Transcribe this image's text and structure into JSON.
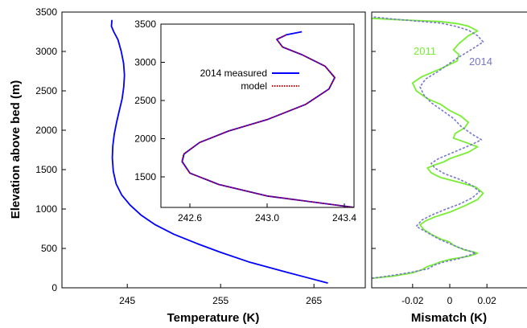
{
  "chart_data": [
    {
      "type": "line",
      "id": "main",
      "xlabel": "Temperature (K)",
      "ylabel": "Elevation above bed (m)",
      "xlim": [
        238,
        270.5
      ],
      "ylim": [
        0,
        3500
      ],
      "xticks": [
        245,
        255,
        265
      ],
      "yticks": [
        0,
        500,
        1000,
        1500,
        2000,
        2500,
        3000,
        3500
      ],
      "grid": false,
      "series": [
        {
          "color": "#0000ff",
          "x": [
            266.5,
            262.0,
            258.0,
            255.0,
            252.5,
            250.0,
            248.0,
            246.5,
            245.3,
            244.4,
            243.8,
            243.5,
            243.4,
            243.45,
            243.6,
            243.85,
            244.15,
            244.45,
            244.62,
            244.7,
            244.6,
            244.35,
            244.0,
            243.55,
            243.3,
            243.35
          ],
          "y": [
            60,
            200,
            330,
            450,
            560,
            680,
            800,
            920,
            1050,
            1180,
            1320,
            1480,
            1650,
            1800,
            1950,
            2100,
            2250,
            2400,
            2550,
            2700,
            2850,
            3000,
            3150,
            3250,
            3320,
            3400
          ]
        }
      ]
    },
    {
      "type": "line",
      "id": "inset",
      "xlim": [
        242.45,
        243.45
      ],
      "ylim": [
        1100,
        3500
      ],
      "xticks": [
        242.6,
        243.0,
        243.4
      ],
      "xtick_labels": [
        "242.6",
        "243.0",
        "243.4"
      ],
      "yticks": [
        1500,
        2000,
        2500,
        3000,
        3500
      ],
      "legend": {
        "placement": "upper-left",
        "entries": [
          "2014 measured",
          "model"
        ]
      },
      "series": [
        {
          "name": "2014 measured",
          "color": "#0000ff",
          "dashed": false,
          "x": [
            243.45,
            243.0,
            242.75,
            242.6,
            242.56,
            242.57,
            242.65,
            242.8,
            243.0,
            243.2,
            243.32,
            243.35,
            243.3,
            243.18,
            243.08,
            243.05,
            243.1,
            243.18
          ],
          "y": [
            1100,
            1250,
            1400,
            1550,
            1700,
            1800,
            1950,
            2100,
            2250,
            2450,
            2650,
            2800,
            2950,
            3100,
            3200,
            3300,
            3360,
            3400
          ]
        },
        {
          "name": "model",
          "color": "#dd0000",
          "dashed": true,
          "x": [
            243.45,
            243.0,
            242.75,
            242.6,
            242.558,
            242.568,
            242.65,
            242.8,
            243.0,
            243.2,
            243.32,
            243.352,
            243.3,
            243.18,
            243.08,
            243.05,
            243.1
          ],
          "y": [
            1100,
            1250,
            1400,
            1550,
            1700,
            1800,
            1950,
            2100,
            2250,
            2450,
            2650,
            2800,
            2950,
            3100,
            3200,
            3300,
            3360
          ]
        }
      ]
    },
    {
      "type": "line",
      "id": "mismatch",
      "xlabel": "Mismatch (K)",
      "xlim": [
        -0.042,
        0.042
      ],
      "ylim": [
        0,
        3500
      ],
      "xticks": [
        -0.02,
        0,
        0.02
      ],
      "xtick_labels": [
        "-0.02",
        "0",
        "0.02"
      ],
      "yticks": [
        0,
        500,
        1000,
        1500,
        2000,
        2500,
        3000,
        3500
      ],
      "series": [
        {
          "name": "2011",
          "color": "#77ee33",
          "dashed": false,
          "x": [
            -0.042,
            -0.03,
            -0.02,
            -0.015,
            -0.012,
            -0.008,
            -0.005,
            0.0,
            0.005,
            0.01,
            0.013,
            0.015,
            0.012,
            0.008,
            0.005,
            0.002,
            0.0,
            -0.005,
            -0.01,
            -0.014,
            -0.016,
            -0.013,
            -0.008,
            0.0,
            0.008,
            0.015,
            0.018,
            0.014,
            0.005,
            -0.005,
            -0.01,
            -0.012,
            -0.008,
            -0.003,
            0.0,
            0.005,
            0.01,
            0.015,
            0.008,
            0.002,
            0.003,
            0.008,
            0.01,
            0.006,
            0.0,
            -0.005,
            -0.012,
            -0.018,
            -0.02,
            -0.015,
            -0.005,
            0.004,
            0.005,
            0.002,
            0.005,
            0.01,
            0.015,
            0.01,
            0.005,
            -0.005,
            -0.025,
            -0.042
          ],
          "y": [
            120,
            150,
            190,
            230,
            270,
            300,
            330,
            360,
            380,
            400,
            420,
            440,
            460,
            480,
            510,
            540,
            580,
            620,
            680,
            740,
            800,
            850,
            900,
            960,
            1040,
            1120,
            1200,
            1280,
            1340,
            1400,
            1460,
            1520,
            1560,
            1600,
            1640,
            1680,
            1720,
            1790,
            1850,
            1900,
            1960,
            2030,
            2100,
            2180,
            2250,
            2330,
            2400,
            2500,
            2600,
            2680,
            2780,
            2880,
            2960,
            3020,
            3100,
            3200,
            3260,
            3320,
            3350,
            3380,
            3400,
            3420
          ]
        },
        {
          "name": "2014",
          "color": "#7777cc",
          "dashed": true,
          "x": [
            -0.042,
            -0.03,
            -0.02,
            -0.012,
            -0.008,
            -0.003,
            0.005,
            0.01,
            0.014,
            0.01,
            0.005,
            0.0,
            -0.006,
            -0.012,
            -0.018,
            -0.015,
            -0.01,
            -0.003,
            0.005,
            0.012,
            0.016,
            0.012,
            0.005,
            -0.003,
            -0.008,
            -0.01,
            -0.006,
            0.0,
            0.006,
            0.012,
            0.017,
            0.012,
            0.006,
            0.002,
            -0.004,
            -0.01,
            -0.014,
            -0.016,
            -0.013,
            -0.006,
            0.0,
            0.005,
            0.01,
            0.014,
            0.018,
            0.015,
            0.01,
            0.003,
            -0.005,
            -0.02,
            -0.03,
            -0.042
          ],
          "y": [
            120,
            160,
            200,
            240,
            290,
            330,
            370,
            410,
            440,
            470,
            510,
            560,
            620,
            700,
            780,
            860,
            920,
            990,
            1060,
            1140,
            1220,
            1300,
            1380,
            1450,
            1520,
            1580,
            1640,
            1700,
            1760,
            1820,
            1880,
            1950,
            2050,
            2150,
            2250,
            2350,
            2450,
            2550,
            2650,
            2750,
            2850,
            2930,
            3000,
            3060,
            3120,
            3200,
            3270,
            3320,
            3360,
            3390,
            3410,
            3440
          ]
        }
      ],
      "annotations": [
        {
          "text": "2011",
          "color": "#77ee33"
        },
        {
          "text": "2014",
          "color": "#7777cc"
        }
      ]
    }
  ]
}
